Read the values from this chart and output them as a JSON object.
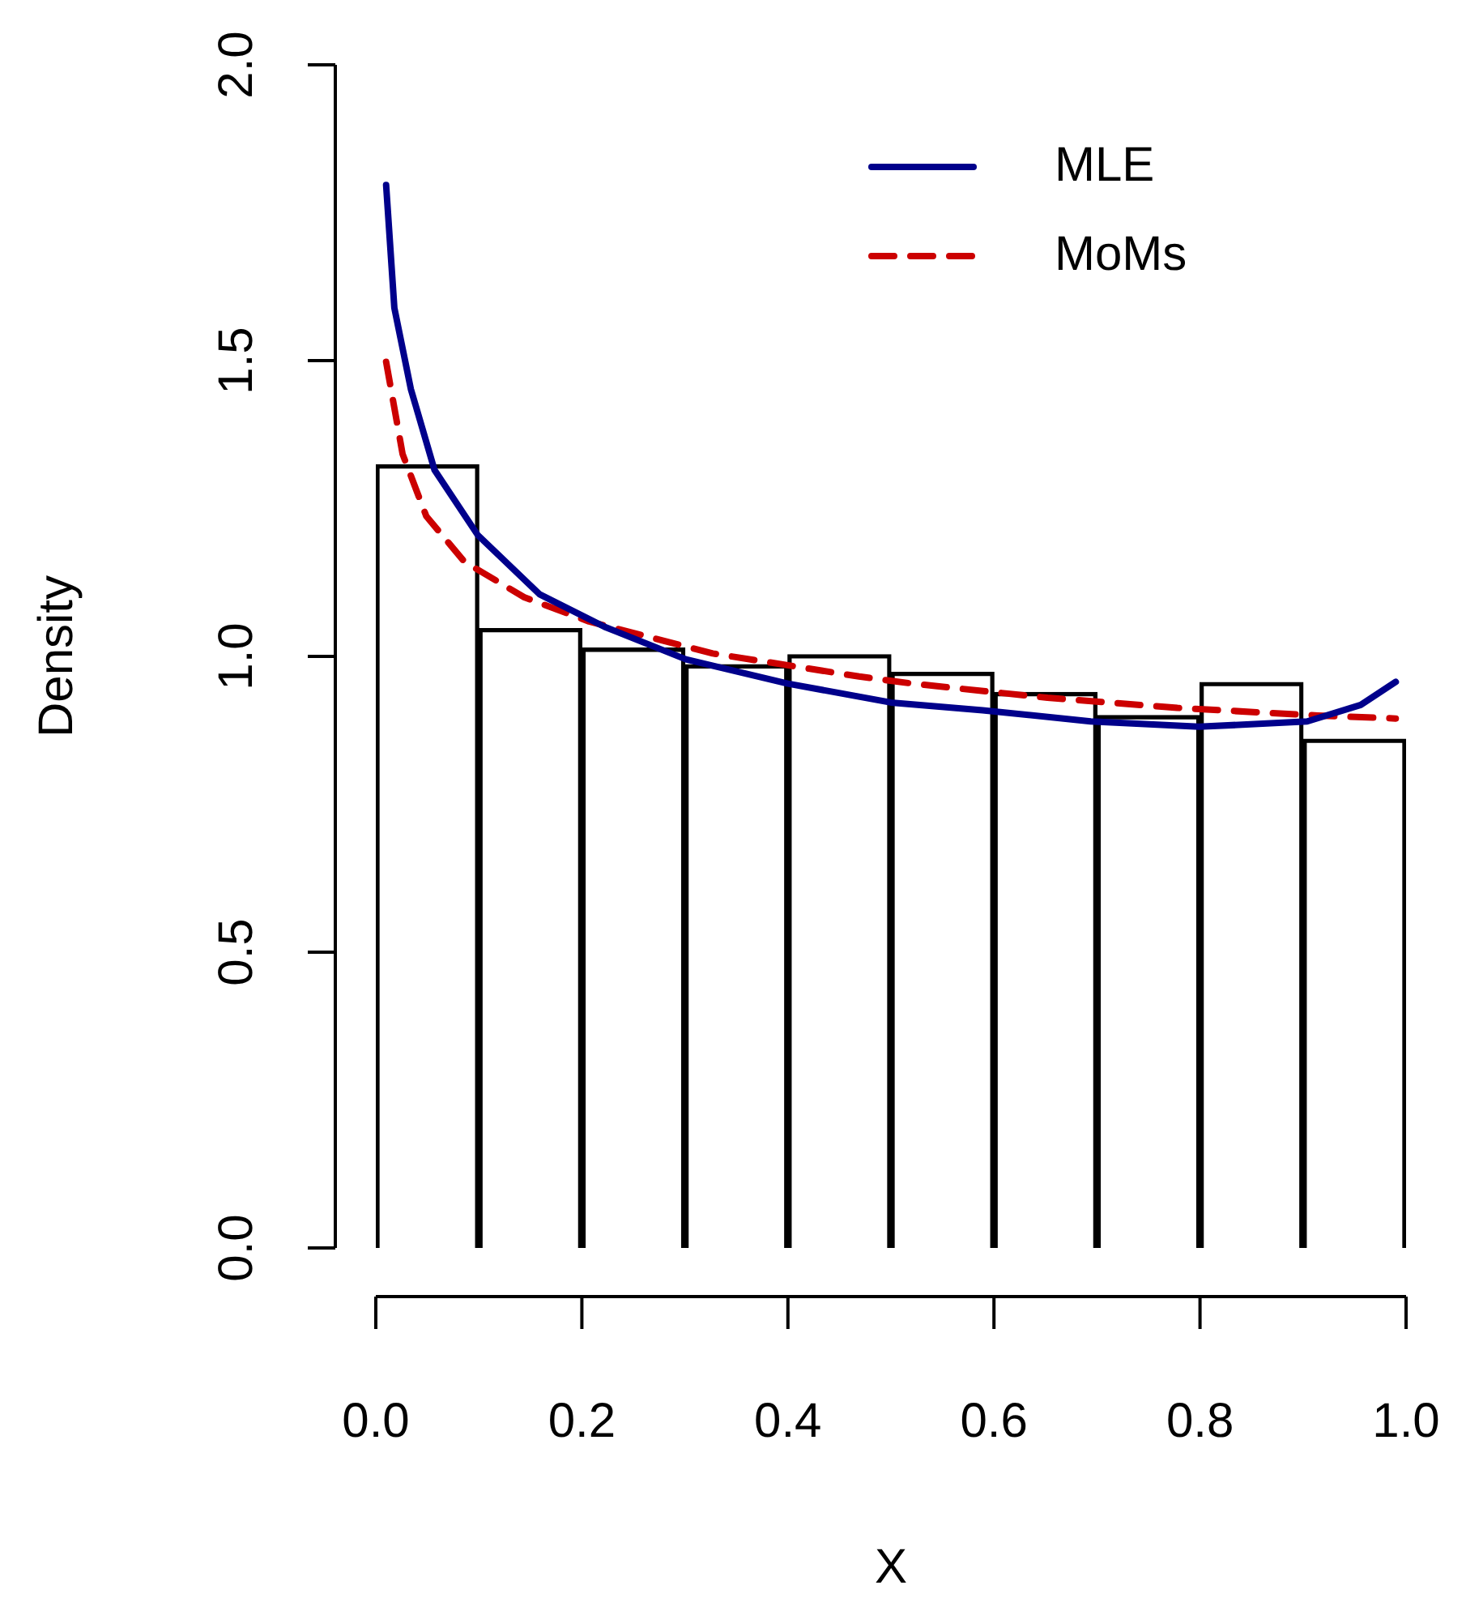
{
  "chart_data": {
    "type": "histogram",
    "xlabel": "X",
    "ylabel": "Density",
    "bins": [
      0,
      0.1,
      0.2,
      0.3,
      0.4,
      0.5,
      0.6,
      0.7,
      0.8,
      0.9,
      1.0
    ],
    "values": [
      1.324,
      1.047,
      1.014,
      0.986,
      1.003,
      0.973,
      0.939,
      0.9,
      0.956,
      0.86
    ],
    "color": "#000000",
    "xlim": [
      0,
      1
    ],
    "ylim": [
      0,
      2
    ],
    "xticks": [
      {
        "value": 0,
        "label": "0.0"
      },
      {
        "value": 0.2,
        "label": "0.2"
      },
      {
        "value": 0.4,
        "label": "0.4"
      },
      {
        "value": 0.6,
        "label": "0.6"
      },
      {
        "value": 0.8,
        "label": "0.8"
      },
      {
        "value": 1,
        "label": "1.0"
      }
    ],
    "yticks": [
      {
        "value": 0,
        "label": "0.0"
      },
      {
        "value": 0.5,
        "label": "0.5"
      },
      {
        "value": 1,
        "label": "1.0"
      },
      {
        "value": 1.5,
        "label": "1.5"
      },
      {
        "value": 2,
        "label": "2.0"
      }
    ],
    "grid": false,
    "legend": "top right",
    "series": [
      {
        "type": "line",
        "name": "MLE",
        "color": "#00008b",
        "line_style": "solid",
        "x": [
          0.01,
          0.018,
          0.034,
          0.057,
          0.099,
          0.159,
          0.222,
          0.301,
          0.4,
          0.5,
          0.589,
          0.694,
          0.799,
          0.904,
          0.956,
          0.99
        ],
        "values": [
          1.797,
          1.589,
          1.452,
          1.315,
          1.205,
          1.105,
          1.05,
          0.995,
          0.954,
          0.922,
          0.909,
          0.89,
          0.881,
          0.89,
          0.918,
          0.957
        ]
      },
      {
        "type": "line",
        "name": "MoMs",
        "color": "#cc0000",
        "line_style": "dashed",
        "x": [
          0.01,
          0.026,
          0.049,
          0.086,
          0.144,
          0.207,
          0.327,
          0.469,
          0.521,
          0.652,
          0.778,
          0.914,
          0.99
        ],
        "values": [
          1.498,
          1.342,
          1.237,
          1.16,
          1.1,
          1.059,
          1.005,
          0.966,
          0.954,
          0.93,
          0.913,
          0.9,
          0.895
        ]
      }
    ]
  }
}
